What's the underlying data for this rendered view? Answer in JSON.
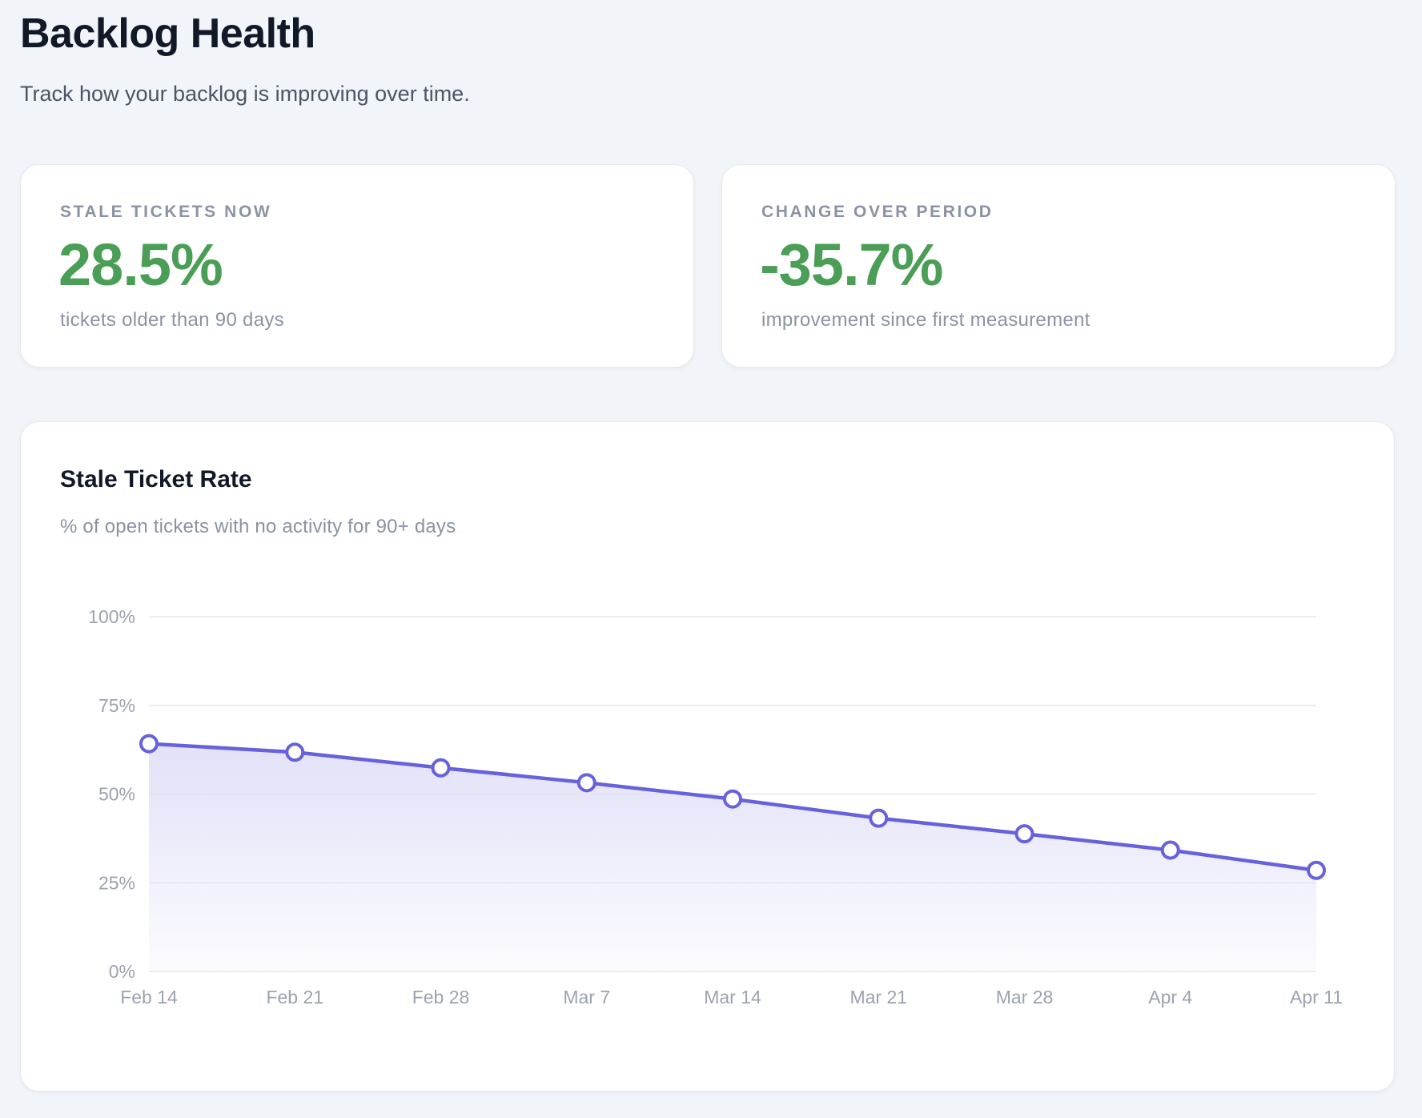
{
  "page": {
    "title": "Backlog Health",
    "subtitle": "Track how your backlog is improving over time."
  },
  "stats": {
    "stale": {
      "label": "STALE TICKETS NOW",
      "value": "28.5%",
      "caption": "tickets older than 90 days"
    },
    "change": {
      "label": "CHANGE OVER PERIOD",
      "value": "-35.7%",
      "caption": "improvement since first measurement"
    }
  },
  "colors": {
    "positive": "#4a9e55",
    "line": "#6761dc",
    "area": "#e2e1f8",
    "grid": "#e5e7eb"
  },
  "chart_data": {
    "type": "area",
    "title": "Stale Ticket Rate",
    "subtitle": "% of open tickets with no activity for 90+ days",
    "categories": [
      "Feb 14",
      "Feb 21",
      "Feb 28",
      "Mar 7",
      "Mar 14",
      "Mar 21",
      "Mar 28",
      "Apr 4",
      "Apr 11"
    ],
    "series": [
      {
        "values": [
          64.2,
          61.8,
          57.4,
          53.2,
          48.6,
          43.2,
          38.8,
          34.2,
          28.5
        ]
      }
    ],
    "ylim": [
      0,
      100
    ],
    "yticks": [
      0,
      25,
      50,
      75,
      100
    ],
    "ytick_labels": [
      "0%",
      "25%",
      "50%",
      "75%",
      "100%"
    ],
    "grid": true,
    "legend": "none"
  }
}
